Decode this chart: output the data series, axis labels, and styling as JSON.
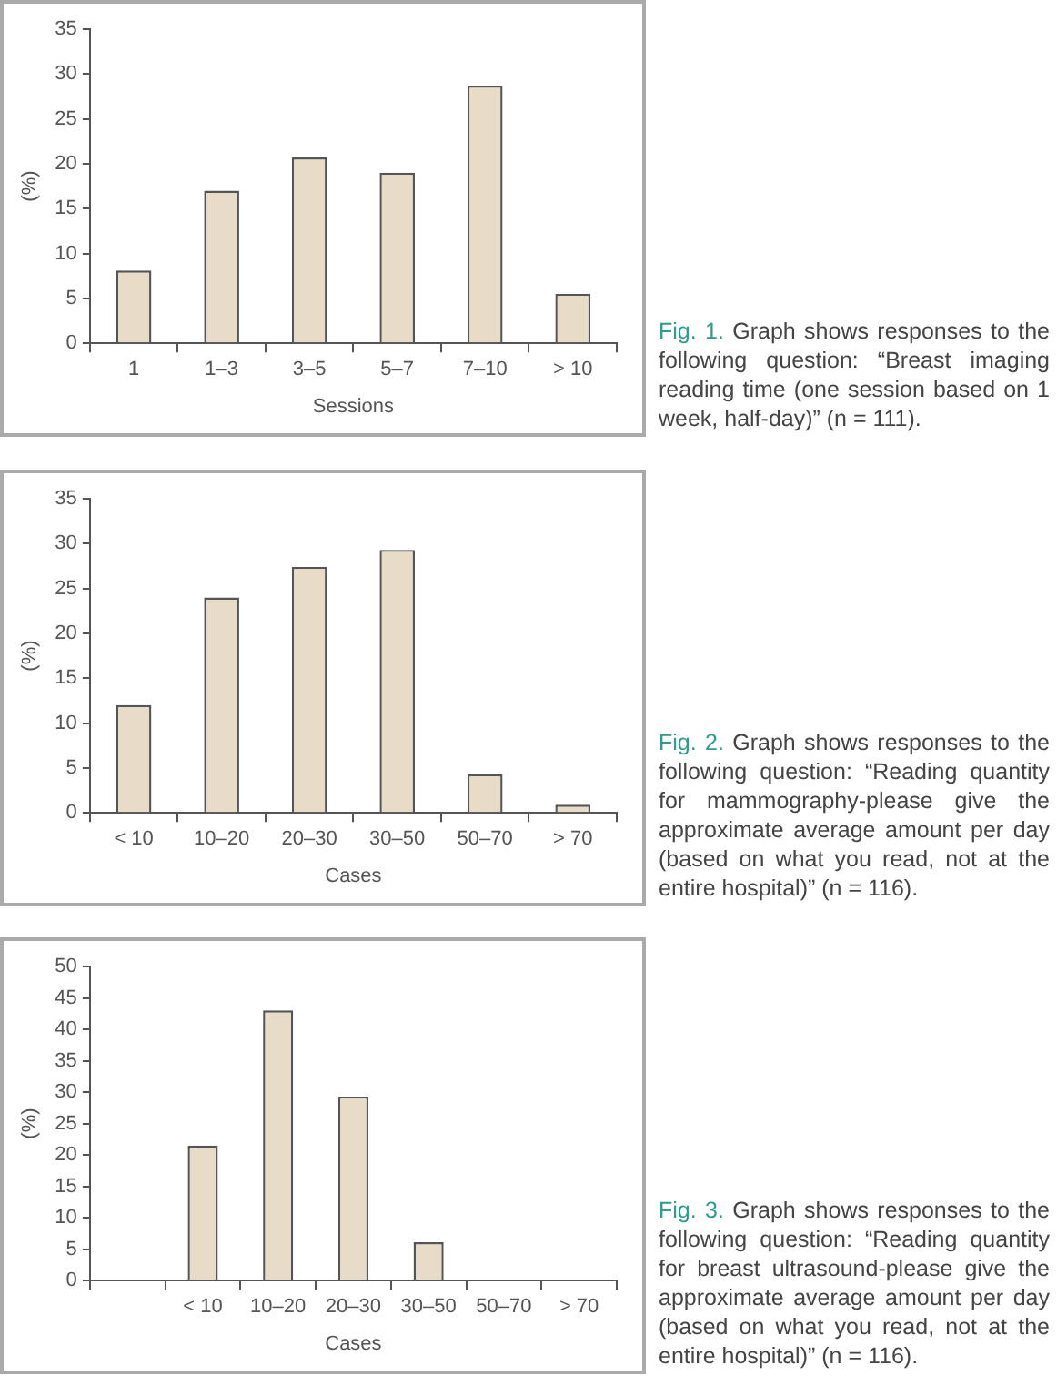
{
  "chart_data": [
    {
      "type": "bar",
      "xlabel": "Sessions",
      "ylabel": "(%)",
      "categories": [
        "1",
        "1–3",
        "3–5",
        "5–7",
        "7–10",
        "> 10"
      ],
      "values": [
        8.1,
        17,
        20.7,
        19,
        28.7,
        5.5
      ],
      "color": "#e8dcc8",
      "ylim": [
        0,
        35
      ],
      "yticks": [
        0,
        5,
        10,
        15,
        20,
        25,
        30,
        35
      ],
      "annotations": [
        "Fig. 1.",
        "Graph shows responses to the following question: “Breast imaging reading time (one session based on 1 week, half-day)” (n = 111)."
      ]
    },
    {
      "type": "bar",
      "xlabel": "Cases",
      "ylabel": "(%)",
      "categories": [
        "< 10",
        "10–20",
        "20–30",
        "30–50",
        "50–70",
        "> 70"
      ],
      "values": [
        12,
        24,
        27.4,
        29.3,
        4.3,
        0.9
      ],
      "color": "#e8dcc8",
      "ylim": [
        0,
        35
      ],
      "yticks": [
        0,
        5,
        10,
        15,
        20,
        25,
        30,
        35
      ],
      "annotations": [
        "Fig. 2.",
        "Graph shows responses to the following question: “Reading quantity for mammography-please give the approximate average amount per day (based on what you read, not at the entire hospital)” (n = 116)."
      ]
    },
    {
      "type": "bar",
      "xlabel": "Cases",
      "ylabel": "(%)",
      "categories": [
        null,
        "< 10",
        "10–20",
        "20–30",
        "30–50",
        "50–70",
        "> 70"
      ],
      "values": [
        null,
        21.5,
        43,
        29.3,
        6.1,
        0,
        0
      ],
      "color": "#e8dcc8",
      "ylim": [
        0,
        50
      ],
      "yticks": [
        0,
        5,
        10,
        15,
        20,
        25,
        30,
        35,
        40,
        45,
        50
      ],
      "annotations": [
        "Fig. 3.",
        "Graph shows responses to the following question: “Reading quantity for breast ultrasound-please give the approximate average amount per day (based on what you read, not at the entire hospital)” (n = 116)."
      ]
    }
  ]
}
